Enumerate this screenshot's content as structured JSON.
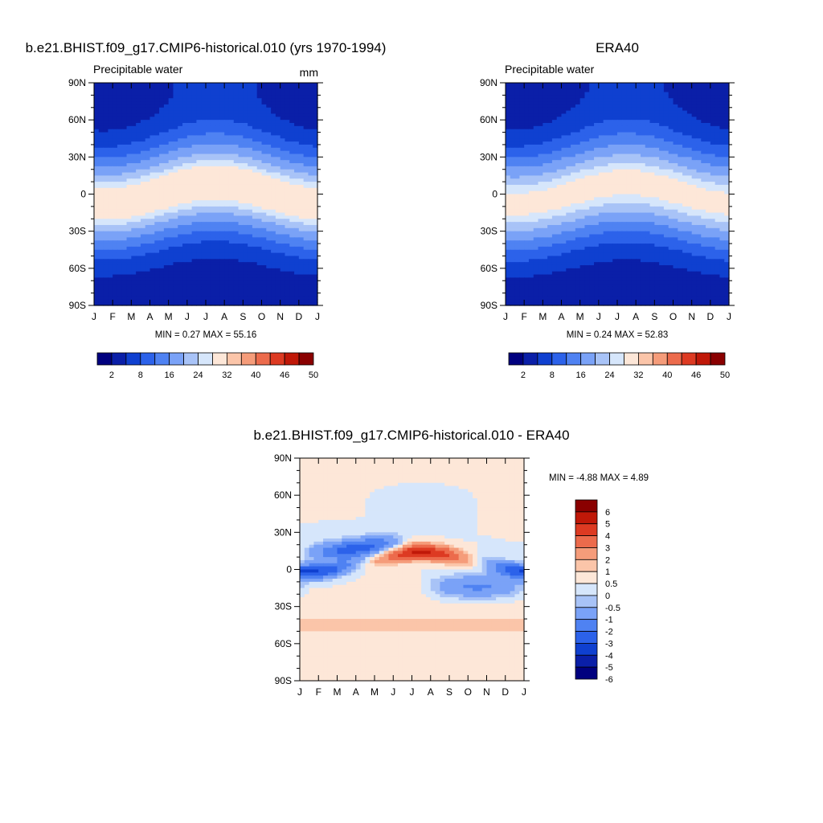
{
  "panels": {
    "model": {
      "title": "b.e21.BHIST.f09_g17.CMIP6-historical.010 (yrs 1970-1994)",
      "left_label": "Precipitable water",
      "right_label": "mm",
      "stats": "MIN =   0.27 MAX =  55.16"
    },
    "obs": {
      "title": "ERA40",
      "left_label": "Precipitable water",
      "right_label": "",
      "stats": "MIN =   0.24 MAX =  52.83"
    },
    "diff": {
      "title": "b.e21.BHIST.f09_g17.CMIP6-historical.010 - ERA40",
      "stats": "MIN =  -4.88 MAX =   4.89"
    }
  },
  "colorbars": {
    "field": {
      "colors": [
        "#00007f",
        "#0a1fa8",
        "#0f40d0",
        "#2c62ea",
        "#4f82f2",
        "#7aa2f7",
        "#a8c3f7",
        "#d6e6fb",
        "#fde7d8",
        "#fbc5a9",
        "#f59c7a",
        "#ec6b4c",
        "#dd3a22",
        "#c01808",
        "#8a0000"
      ],
      "tick_labels": [
        "2",
        "8",
        "16",
        "24",
        "32",
        "40",
        "46",
        "50"
      ]
    },
    "diff": {
      "colors": [
        "#00007f",
        "#0a1fa8",
        "#0f40d0",
        "#2c62ea",
        "#4f82f2",
        "#7aa2f7",
        "#a8c3f7",
        "#d6e6fb",
        "#fde7d8",
        "#fbc5a9",
        "#f59c7a",
        "#ec6b4c",
        "#dd3a22",
        "#c01808",
        "#8a0000"
      ],
      "tick_labels": [
        "-6",
        "-5",
        "-4",
        "-3",
        "-2",
        "-1",
        "-0.5",
        "0",
        "0.5",
        "1",
        "2",
        "3",
        "4",
        "5",
        "6"
      ]
    }
  },
  "chart_data": [
    {
      "type": "heatmap",
      "title": "b.e21.BHIST.f09_g17.CMIP6-historical.010 (yrs 1970-1994)",
      "variable": "Precipitable water",
      "units": "mm",
      "x_ticks": [
        "J",
        "F",
        "M",
        "A",
        "M",
        "J",
        "J",
        "A",
        "S",
        "O",
        "N",
        "D",
        "J"
      ],
      "y_ticks": [
        "90N",
        "60N",
        "30N",
        "0",
        "30S",
        "60S",
        "90S"
      ],
      "xlim": [
        0,
        12
      ],
      "ylim": [
        -90,
        90
      ],
      "levels": [
        2,
        8,
        16,
        24,
        32,
        40,
        46,
        50
      ],
      "min": 0.27,
      "max": 55.16,
      "field": {
        "kind": "seasonal_pw",
        "eq_peak": 54,
        "eq_lat_amp": 8,
        "eq_lat_phase": 6.5,
        "pole_north_min": 3,
        "pole_north_max": 14,
        "pole_south_min": 1.5,
        "pole_south_max": 4,
        "width": 28
      }
    },
    {
      "type": "heatmap",
      "title": "ERA40",
      "variable": "Precipitable water",
      "x_ticks": [
        "J",
        "F",
        "M",
        "A",
        "M",
        "J",
        "J",
        "A",
        "S",
        "O",
        "N",
        "D",
        "J"
      ],
      "y_ticks": [
        "90N",
        "60N",
        "30N",
        "0",
        "30S",
        "60S",
        "90S"
      ],
      "xlim": [
        0,
        12
      ],
      "ylim": [
        -90,
        90
      ],
      "levels": [
        2,
        8,
        16,
        24,
        32,
        40,
        46,
        50
      ],
      "min": 0.24,
      "max": 52.83,
      "field": {
        "kind": "seasonal_pw",
        "eq_peak": 51,
        "eq_lat_amp": 8,
        "eq_lat_phase": 6.5,
        "pole_north_min": 2.5,
        "pole_north_max": 13,
        "pole_south_min": 1.2,
        "pole_south_max": 3.5,
        "width": 29
      }
    },
    {
      "type": "heatmap",
      "title": "b.e21.BHIST.f09_g17.CMIP6-historical.010 - ERA40",
      "x_ticks": [
        "J",
        "F",
        "M",
        "A",
        "M",
        "J",
        "J",
        "A",
        "S",
        "O",
        "N",
        "D",
        "J"
      ],
      "y_ticks": [
        "90N",
        "60N",
        "30N",
        "0",
        "30S",
        "60S",
        "90S"
      ],
      "xlim": [
        0,
        12
      ],
      "ylim": [
        -90,
        90
      ],
      "levels": [
        -6,
        -5,
        -4,
        -3,
        -2,
        -1,
        -0.5,
        0,
        0.5,
        1,
        2,
        3,
        4,
        5,
        6
      ],
      "min": -4.88,
      "max": 4.89,
      "field": {
        "kind": "difference"
      }
    }
  ]
}
